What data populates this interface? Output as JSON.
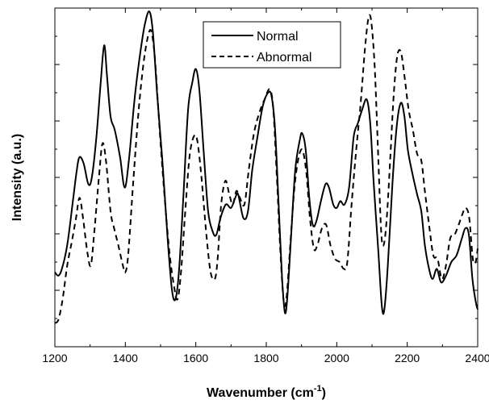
{
  "chart_data": {
    "type": "line",
    "xlabel": "Wavenumber (cm",
    "xlabel_sup": "-1",
    "xlabel_close": ")",
    "ylabel": "Intensity (a.u.)",
    "xlim": [
      1200,
      2400
    ],
    "ylim": [
      0,
      1
    ],
    "x_ticks": [
      1200,
      1400,
      1600,
      1800,
      2000,
      2200,
      2400
    ],
    "y_tick_labels_shown": false,
    "grid": false,
    "legend_position": "top-center",
    "series": [
      {
        "name": "Normal",
        "style": "solid",
        "color": "#000000",
        "points": [
          [
            1200,
            0.22
          ],
          [
            1210,
            0.21
          ],
          [
            1220,
            0.23
          ],
          [
            1235,
            0.3
          ],
          [
            1250,
            0.42
          ],
          [
            1262,
            0.52
          ],
          [
            1270,
            0.56
          ],
          [
            1282,
            0.54
          ],
          [
            1295,
            0.48
          ],
          [
            1305,
            0.5
          ],
          [
            1318,
            0.62
          ],
          [
            1330,
            0.78
          ],
          [
            1340,
            0.89
          ],
          [
            1348,
            0.8
          ],
          [
            1358,
            0.68
          ],
          [
            1370,
            0.64
          ],
          [
            1385,
            0.56
          ],
          [
            1398,
            0.47
          ],
          [
            1410,
            0.55
          ],
          [
            1425,
            0.72
          ],
          [
            1440,
            0.85
          ],
          [
            1455,
            0.95
          ],
          [
            1468,
            0.99
          ],
          [
            1478,
            0.93
          ],
          [
            1490,
            0.75
          ],
          [
            1505,
            0.55
          ],
          [
            1520,
            0.32
          ],
          [
            1532,
            0.17
          ],
          [
            1542,
            0.14
          ],
          [
            1552,
            0.22
          ],
          [
            1565,
            0.45
          ],
          [
            1578,
            0.7
          ],
          [
            1590,
            0.78
          ],
          [
            1600,
            0.82
          ],
          [
            1610,
            0.76
          ],
          [
            1622,
            0.58
          ],
          [
            1635,
            0.4
          ],
          [
            1648,
            0.34
          ],
          [
            1658,
            0.33
          ],
          [
            1670,
            0.38
          ],
          [
            1685,
            0.42
          ],
          [
            1700,
            0.41
          ],
          [
            1712,
            0.44
          ],
          [
            1720,
            0.45
          ],
          [
            1735,
            0.38
          ],
          [
            1748,
            0.4
          ],
          [
            1760,
            0.52
          ],
          [
            1775,
            0.62
          ],
          [
            1790,
            0.71
          ],
          [
            1805,
            0.75
          ],
          [
            1815,
            0.74
          ],
          [
            1825,
            0.64
          ],
          [
            1835,
            0.42
          ],
          [
            1845,
            0.2
          ],
          [
            1853,
            0.1
          ],
          [
            1860,
            0.15
          ],
          [
            1870,
            0.32
          ],
          [
            1882,
            0.52
          ],
          [
            1895,
            0.61
          ],
          [
            1902,
            0.63
          ],
          [
            1912,
            0.58
          ],
          [
            1922,
            0.44
          ],
          [
            1932,
            0.36
          ],
          [
            1942,
            0.37
          ],
          [
            1955,
            0.43
          ],
          [
            1968,
            0.48
          ],
          [
            1978,
            0.47
          ],
          [
            1990,
            0.42
          ],
          [
            2000,
            0.41
          ],
          [
            2010,
            0.43
          ],
          [
            2022,
            0.42
          ],
          [
            2035,
            0.47
          ],
          [
            2048,
            0.62
          ],
          [
            2060,
            0.66
          ],
          [
            2072,
            0.7
          ],
          [
            2085,
            0.73
          ],
          [
            2095,
            0.66
          ],
          [
            2105,
            0.48
          ],
          [
            2118,
            0.28
          ],
          [
            2128,
            0.12
          ],
          [
            2135,
            0.11
          ],
          [
            2145,
            0.24
          ],
          [
            2158,
            0.48
          ],
          [
            2170,
            0.65
          ],
          [
            2182,
            0.72
          ],
          [
            2192,
            0.68
          ],
          [
            2202,
            0.58
          ],
          [
            2215,
            0.51
          ],
          [
            2228,
            0.45
          ],
          [
            2240,
            0.4
          ],
          [
            2250,
            0.3
          ],
          [
            2262,
            0.23
          ],
          [
            2272,
            0.2
          ],
          [
            2284,
            0.23
          ],
          [
            2296,
            0.19
          ],
          [
            2310,
            0.21
          ],
          [
            2325,
            0.25
          ],
          [
            2340,
            0.27
          ],
          [
            2355,
            0.32
          ],
          [
            2365,
            0.35
          ],
          [
            2375,
            0.33
          ],
          [
            2385,
            0.2
          ],
          [
            2395,
            0.13
          ],
          [
            2400,
            0.11
          ]
        ]
      },
      {
        "name": "Abnormal",
        "style": "dashed",
        "color": "#000000",
        "points": [
          [
            1200,
            0.07
          ],
          [
            1210,
            0.08
          ],
          [
            1222,
            0.14
          ],
          [
            1235,
            0.24
          ],
          [
            1248,
            0.31
          ],
          [
            1260,
            0.38
          ],
          [
            1270,
            0.44
          ],
          [
            1280,
            0.38
          ],
          [
            1292,
            0.28
          ],
          [
            1302,
            0.24
          ],
          [
            1312,
            0.34
          ],
          [
            1325,
            0.5
          ],
          [
            1335,
            0.6
          ],
          [
            1345,
            0.55
          ],
          [
            1358,
            0.4
          ],
          [
            1368,
            0.35
          ],
          [
            1380,
            0.3
          ],
          [
            1393,
            0.24
          ],
          [
            1400,
            0.22
          ],
          [
            1408,
            0.27
          ],
          [
            1422,
            0.48
          ],
          [
            1438,
            0.7
          ],
          [
            1452,
            0.84
          ],
          [
            1465,
            0.92
          ],
          [
            1474,
            0.93
          ],
          [
            1484,
            0.85
          ],
          [
            1496,
            0.66
          ],
          [
            1510,
            0.46
          ],
          [
            1525,
            0.28
          ],
          [
            1538,
            0.18
          ],
          [
            1548,
            0.14
          ],
          [
            1558,
            0.22
          ],
          [
            1570,
            0.4
          ],
          [
            1582,
            0.56
          ],
          [
            1594,
            0.62
          ],
          [
            1604,
            0.61
          ],
          [
            1616,
            0.5
          ],
          [
            1630,
            0.33
          ],
          [
            1642,
            0.22
          ],
          [
            1654,
            0.2
          ],
          [
            1662,
            0.26
          ],
          [
            1672,
            0.42
          ],
          [
            1684,
            0.49
          ],
          [
            1695,
            0.45
          ],
          [
            1705,
            0.42
          ],
          [
            1715,
            0.46
          ],
          [
            1725,
            0.44
          ],
          [
            1738,
            0.42
          ],
          [
            1750,
            0.52
          ],
          [
            1765,
            0.63
          ],
          [
            1780,
            0.69
          ],
          [
            1795,
            0.73
          ],
          [
            1810,
            0.76
          ],
          [
            1820,
            0.7
          ],
          [
            1830,
            0.5
          ],
          [
            1840,
            0.28
          ],
          [
            1850,
            0.13
          ],
          [
            1858,
            0.15
          ],
          [
            1868,
            0.3
          ],
          [
            1880,
            0.47
          ],
          [
            1892,
            0.56
          ],
          [
            1903,
            0.58
          ],
          [
            1914,
            0.51
          ],
          [
            1924,
            0.38
          ],
          [
            1935,
            0.29
          ],
          [
            1945,
            0.3
          ],
          [
            1958,
            0.35
          ],
          [
            1970,
            0.36
          ],
          [
            1982,
            0.3
          ],
          [
            1995,
            0.26
          ],
          [
            2008,
            0.25
          ],
          [
            2020,
            0.23
          ],
          [
            2030,
            0.25
          ],
          [
            2042,
            0.42
          ],
          [
            2055,
            0.58
          ],
          [
            2068,
            0.72
          ],
          [
            2080,
            0.88
          ],
          [
            2090,
            0.97
          ],
          [
            2098,
            0.96
          ],
          [
            2108,
            0.82
          ],
          [
            2118,
            0.55
          ],
          [
            2126,
            0.34
          ],
          [
            2133,
            0.3
          ],
          [
            2142,
            0.38
          ],
          [
            2152,
            0.56
          ],
          [
            2162,
            0.75
          ],
          [
            2172,
            0.86
          ],
          [
            2182,
            0.87
          ],
          [
            2192,
            0.8
          ],
          [
            2204,
            0.7
          ],
          [
            2216,
            0.64
          ],
          [
            2228,
            0.57
          ],
          [
            2240,
            0.55
          ],
          [
            2250,
            0.46
          ],
          [
            2262,
            0.36
          ],
          [
            2274,
            0.27
          ],
          [
            2286,
            0.26
          ],
          [
            2298,
            0.2
          ],
          [
            2310,
            0.24
          ],
          [
            2322,
            0.32
          ],
          [
            2334,
            0.33
          ],
          [
            2346,
            0.36
          ],
          [
            2356,
            0.39
          ],
          [
            2366,
            0.41
          ],
          [
            2376,
            0.38
          ],
          [
            2386,
            0.26
          ],
          [
            2394,
            0.25
          ],
          [
            2400,
            0.29
          ]
        ]
      }
    ]
  }
}
